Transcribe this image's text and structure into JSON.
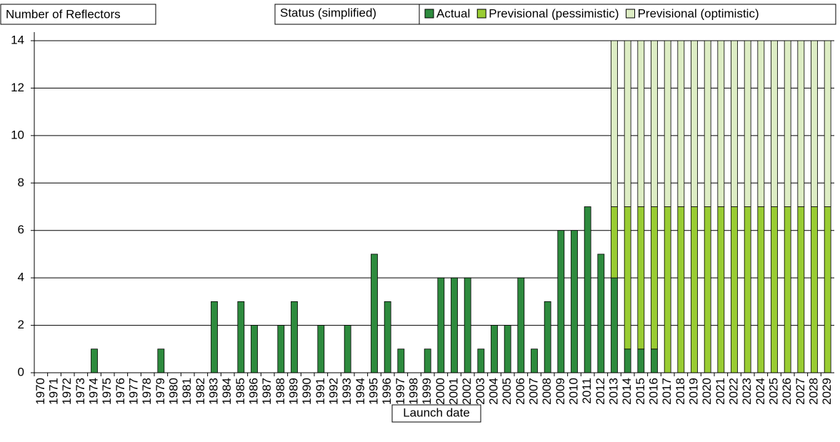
{
  "chart_data": {
    "type": "stacked_bar",
    "y_label": "Number of Reflectors",
    "x_label": "Launch date",
    "legend_title": "Status (simplified)",
    "categories": [
      "1970",
      "1971",
      "1972",
      "1973",
      "1974",
      "1975",
      "1976",
      "1977",
      "1978",
      "1979",
      "1980",
      "1981",
      "1982",
      "1983",
      "1984",
      "1985",
      "1986",
      "1987",
      "1988",
      "1989",
      "1990",
      "1991",
      "1992",
      "1993",
      "1994",
      "1995",
      "1996",
      "1997",
      "1998",
      "1999",
      "2000",
      "2001",
      "2002",
      "2003",
      "2004",
      "2005",
      "2006",
      "2007",
      "2008",
      "2009",
      "2010",
      "2011",
      "2012",
      "2013",
      "2014",
      "2015",
      "2016",
      "2017",
      "2018",
      "2019",
      "2020",
      "2021",
      "2022",
      "2023",
      "2024",
      "2025",
      "2026",
      "2027",
      "2028",
      "2029"
    ],
    "series": [
      {
        "name": "Actual",
        "color": "#2e8b3e",
        "values": [
          0,
          0,
          0,
          0,
          1,
          0,
          0,
          0,
          0,
          1,
          0,
          0,
          0,
          3,
          0,
          3,
          2,
          0,
          2,
          3,
          0,
          2,
          0,
          2,
          0,
          5,
          3,
          1,
          0,
          1,
          4,
          4,
          4,
          1,
          2,
          2,
          4,
          1,
          3,
          6,
          6,
          7,
          5,
          4,
          1,
          1,
          1,
          0,
          0,
          0,
          0,
          0,
          0,
          0,
          0,
          0,
          0,
          0,
          0,
          0
        ]
      },
      {
        "name": "Previsional (pessimistic)",
        "color": "#99cc33",
        "values": [
          0,
          0,
          0,
          0,
          0,
          0,
          0,
          0,
          0,
          0,
          0,
          0,
          0,
          0,
          0,
          0,
          0,
          0,
          0,
          0,
          0,
          0,
          0,
          0,
          0,
          0,
          0,
          0,
          0,
          0,
          0,
          0,
          0,
          0,
          0,
          0,
          0,
          0,
          0,
          0,
          0,
          0,
          0,
          3,
          6,
          6,
          6,
          7,
          7,
          7,
          7,
          7,
          7,
          7,
          7,
          7,
          7,
          7,
          7,
          7
        ]
      },
      {
        "name": "Previsional (optimistic)",
        "color": "#ddedc4",
        "values": [
          0,
          0,
          0,
          0,
          0,
          0,
          0,
          0,
          0,
          0,
          0,
          0,
          0,
          0,
          0,
          0,
          0,
          0,
          0,
          0,
          0,
          0,
          0,
          0,
          0,
          0,
          0,
          0,
          0,
          0,
          0,
          0,
          0,
          0,
          0,
          0,
          0,
          0,
          0,
          0,
          0,
          0,
          0,
          7,
          7,
          7,
          7,
          7,
          7,
          7,
          7,
          7,
          7,
          7,
          7,
          7,
          7,
          7,
          7,
          7
        ]
      }
    ],
    "ylim": [
      0,
      14
    ],
    "yticks": [
      0,
      2,
      4,
      6,
      8,
      10,
      12,
      14
    ],
    "grid": true
  }
}
